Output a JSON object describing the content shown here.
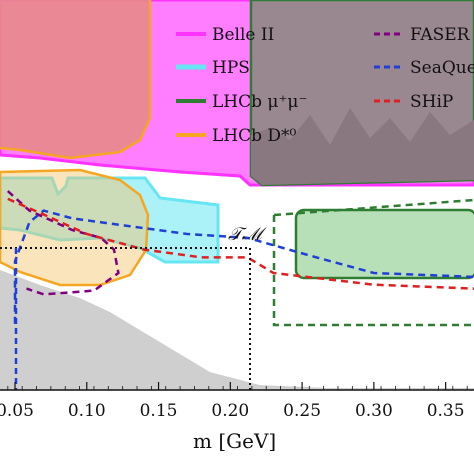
{
  "chart_data": {
    "type": "area",
    "xlabel": "m [GeV]",
    "ylabel": "",
    "xlim": [
      0.045,
      0.37
    ],
    "ylim": [
      0,
      1
    ],
    "x_tick_labels": [
      "0.05",
      "0.10",
      "0.15",
      "0.20",
      "0.25",
      "0.30",
      "0.35"
    ],
    "x_ticks": [
      0.05,
      0.1,
      0.15,
      0.2,
      0.25,
      0.3,
      0.35
    ],
    "legend_position": "top-right",
    "annotation": {
      "text": "𝒯ℳ",
      "x": 0.212,
      "y": 0.42
    },
    "colors": {
      "Belle II": "#ff33ff",
      "HPS": "#66e5f2",
      "LHCb mu": "#2e7d32",
      "LHCb D": "#f5a623",
      "FASER": "#800080",
      "SeaQuest": "#1f3fd6",
      "SHiP": "#e02020",
      "excluded_red": "#f08080",
      "excluded_gray": "#d0d0d0",
      "lhcb_fill": "#9a8890"
    },
    "series": [
      {
        "name": "Belle II",
        "style": "solid",
        "upper_bound": [
          [
            0.045,
            0.66
          ],
          [
            0.06,
            0.665
          ],
          [
            0.1,
            0.67
          ],
          [
            0.15,
            0.66
          ],
          [
            0.2,
            0.65
          ],
          [
            0.22,
            0.64
          ]
        ]
      },
      {
        "name": "HPS",
        "style": "solid",
        "region": [
          [
            0.045,
            0.6
          ],
          [
            0.065,
            0.6
          ],
          [
            0.07,
            0.57
          ],
          [
            0.08,
            0.58
          ],
          [
            0.09,
            0.61
          ],
          [
            0.14,
            0.61
          ],
          [
            0.15,
            0.58
          ],
          [
            0.19,
            0.57
          ],
          [
            0.19,
            0.42
          ],
          [
            0.145,
            0.42
          ],
          [
            0.12,
            0.47
          ],
          [
            0.09,
            0.5
          ],
          [
            0.07,
            0.5
          ],
          [
            0.045,
            0.47
          ]
        ]
      },
      {
        "name": "LHCb μ⁺μ⁻",
        "style": "solid",
        "regions": [
          [
            [
              0.212,
              1.0
            ],
            [
              0.212,
              0.615
            ],
            [
              0.37,
              0.615
            ],
            [
              0.37,
              1.0
            ]
          ],
          [
            [
              0.228,
              0.54
            ],
            [
              0.37,
              0.54
            ],
            [
              0.37,
              0.41
            ],
            [
              0.228,
              0.41
            ]
          ]
        ]
      },
      {
        "name": "LHCb D*⁰",
        "style": "solid",
        "region": [
          [
            0.045,
            0.61
          ],
          [
            0.07,
            0.61
          ],
          [
            0.1,
            0.6
          ],
          [
            0.122,
            0.55
          ],
          [
            0.124,
            0.45
          ],
          [
            0.11,
            0.41
          ],
          [
            0.08,
            0.4
          ],
          [
            0.045,
            0.41
          ]
        ]
      },
      {
        "name": "FASER",
        "style": "dashed",
        "curve": [
          [
            0.045,
            0.51
          ],
          [
            0.06,
            0.46
          ],
          [
            0.09,
            0.41
          ],
          [
            0.11,
            0.39
          ],
          [
            0.119,
            0.36
          ],
          [
            0.122,
            0.3
          ],
          [
            0.105,
            0.255
          ],
          [
            0.07,
            0.245
          ],
          [
            0.058,
            0.26
          ]
        ]
      },
      {
        "name": "SeaQuest",
        "style": "dashed",
        "curve": [
          [
            0.05,
            0.17
          ],
          [
            0.05,
            0.33
          ],
          [
            0.06,
            0.43
          ],
          [
            0.07,
            0.46
          ],
          [
            0.09,
            0.44
          ],
          [
            0.13,
            0.42
          ],
          [
            0.17,
            0.4
          ],
          [
            0.212,
            0.39
          ],
          [
            0.26,
            0.34
          ],
          [
            0.3,
            0.3
          ],
          [
            0.37,
            0.29
          ]
        ]
      },
      {
        "name": "SHiP",
        "style": "dashed",
        "curve": [
          [
            0.045,
            0.49
          ],
          [
            0.07,
            0.45
          ],
          [
            0.1,
            0.4
          ],
          [
            0.14,
            0.36
          ],
          [
            0.18,
            0.34
          ],
          [
            0.212,
            0.34
          ],
          [
            0.23,
            0.3
          ],
          [
            0.3,
            0.27
          ],
          [
            0.37,
            0.26
          ]
        ]
      }
    ],
    "excluded_regions": [
      {
        "name": "Belle II fill",
        "color": "#ff33ff"
      },
      {
        "name": "upper excluded",
        "color": "#f08080"
      },
      {
        "name": "lower excluded",
        "color": "#d0d0d0"
      }
    ]
  },
  "legend": {
    "col1": [
      "Belle II",
      "HPS",
      "LHCb μ⁺μ⁻",
      "LHCb D*⁰"
    ],
    "col2": [
      "FASER",
      "SeaQuest",
      "SHiP"
    ]
  },
  "axis": {
    "xlabel": "m [GeV]",
    "ticks": [
      "0.05",
      "0.10",
      "0.15",
      "0.20",
      "0.25",
      "0.30",
      "0.35"
    ]
  },
  "annotation": "𝒯ℳ"
}
